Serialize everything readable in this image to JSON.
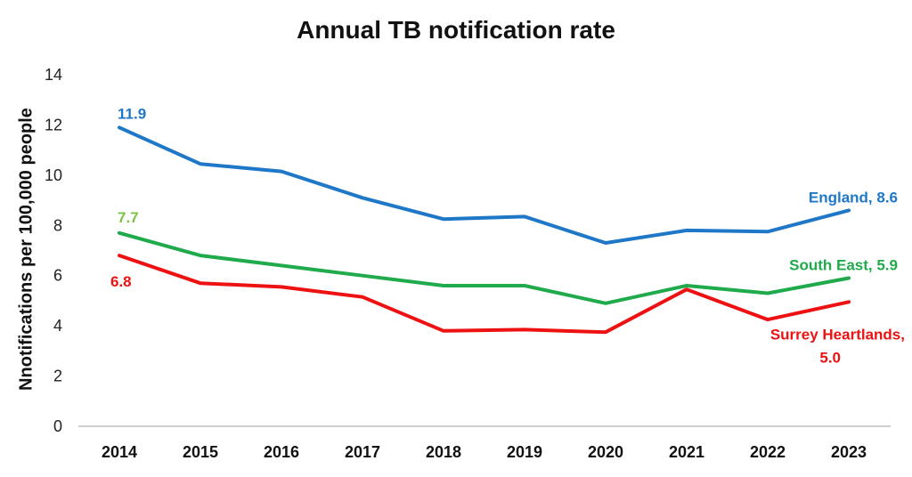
{
  "chart_data": {
    "type": "line",
    "title": "Annual TB notification rate",
    "ylabel": "Nnotifications per 100,000 people",
    "xlabel": "",
    "ylim": [
      0,
      14
    ],
    "yticks": [
      0,
      2,
      4,
      6,
      8,
      10,
      12,
      14
    ],
    "categories": [
      "2014",
      "2015",
      "2016",
      "2017",
      "2018",
      "2019",
      "2020",
      "2021",
      "2022",
      "2023"
    ],
    "grid": false,
    "series": [
      {
        "name": "England",
        "color": "#1F77C8",
        "values": [
          11.9,
          10.45,
          10.15,
          9.1,
          8.25,
          8.35,
          7.3,
          7.8,
          7.75,
          8.6
        ],
        "start_label": "11.9",
        "end_label": "England, 8.6"
      },
      {
        "name": "South East",
        "color": "#1FAA4B",
        "values": [
          7.7,
          6.8,
          6.4,
          6.0,
          5.6,
          5.6,
          4.9,
          5.6,
          5.3,
          5.9
        ],
        "start_label": "7.7",
        "start_label_color": "#7DC242",
        "end_label": "South East, 5.9"
      },
      {
        "name": "Surrey Heartlands",
        "color": "#EE1111",
        "values": [
          6.8,
          5.7,
          5.55,
          5.15,
          3.8,
          3.85,
          3.75,
          5.45,
          4.25,
          4.95
        ],
        "start_label": "6.8",
        "end_label_lines": [
          "Surrey Heartlands,",
          "5.0"
        ]
      }
    ]
  }
}
